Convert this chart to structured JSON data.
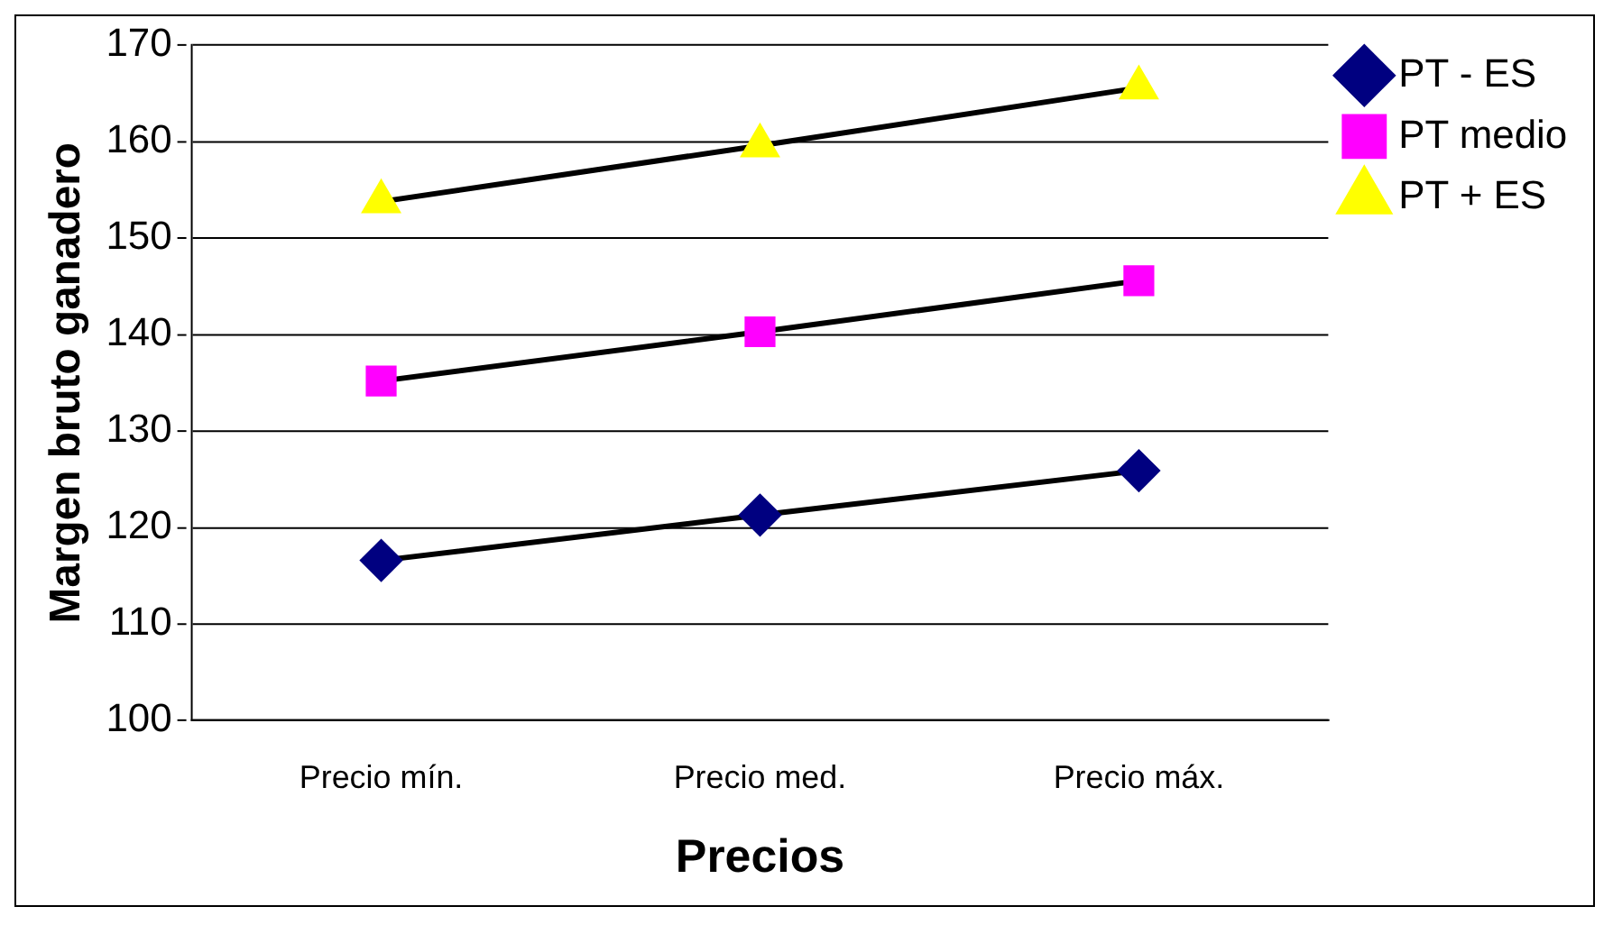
{
  "chart_data": {
    "type": "line",
    "xlabel": "Precios",
    "ylabel": "Margen bruto ganadero",
    "categories": [
      "Precio mín.",
      "Precio med.",
      "Precio máx."
    ],
    "series": [
      {
        "name": "PT - ES",
        "color": "#000080",
        "marker": "diamond",
        "values": [
          116.6,
          121.3,
          125.9
        ]
      },
      {
        "name": "PT medio",
        "color": "#ff00ff",
        "marker": "square",
        "values": [
          135.2,
          140.3,
          145.6
        ]
      },
      {
        "name": "PT + ES",
        "color": "#ffff00",
        "marker": "triangle",
        "values": [
          153.8,
          159.6,
          165.6
        ]
      }
    ],
    "ylim": [
      100,
      170
    ],
    "yticks": [
      100,
      110,
      120,
      130,
      140,
      150,
      160,
      170
    ],
    "grid": "y",
    "legend": "top right",
    "line_style": "solid"
  }
}
